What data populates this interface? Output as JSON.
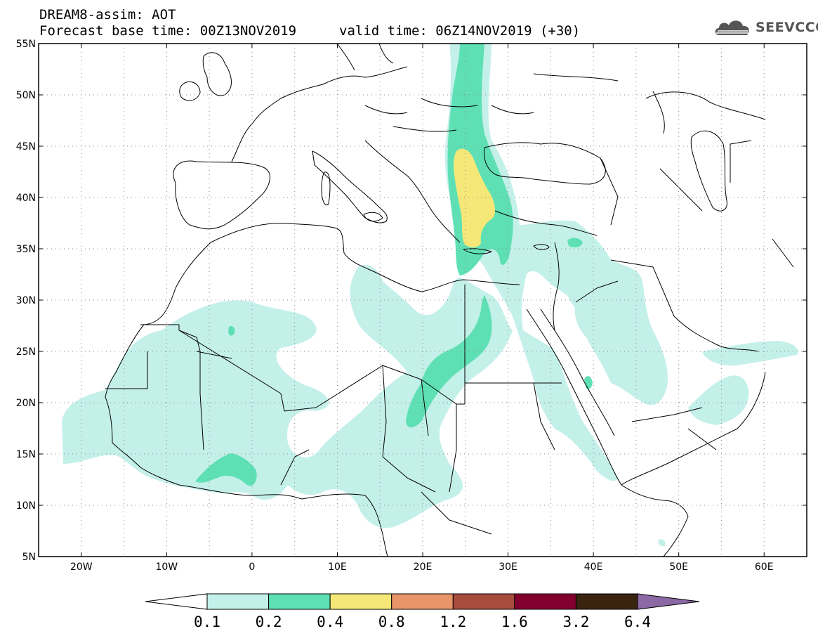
{
  "header": {
    "title": "DREAM8-assim: AOT",
    "base_time": "Forecast base time: 00Z13NOV2019",
    "valid_time": "valid time: 06Z14NOV2019 (+30)"
  },
  "logo": {
    "text": "SEEVCCC",
    "icon": "cloud-logo-icon"
  },
  "map": {
    "lon_range": [
      -25,
      65
    ],
    "lat_range": [
      5,
      55
    ],
    "lon_ticks": [
      {
        "value": -20,
        "label": "20W"
      },
      {
        "value": -10,
        "label": "10W"
      },
      {
        "value": 0,
        "label": "0"
      },
      {
        "value": 10,
        "label": "10E"
      },
      {
        "value": 20,
        "label": "20E"
      },
      {
        "value": 30,
        "label": "30E"
      },
      {
        "value": 40,
        "label": "40E"
      },
      {
        "value": 50,
        "label": "50E"
      },
      {
        "value": 60,
        "label": "60E"
      }
    ],
    "lat_ticks": [
      {
        "value": 55,
        "label": "55N"
      },
      {
        "value": 50,
        "label": "50N"
      },
      {
        "value": 45,
        "label": "45N"
      },
      {
        "value": 40,
        "label": "40N"
      },
      {
        "value": 35,
        "label": "35N"
      },
      {
        "value": 30,
        "label": "30N"
      },
      {
        "value": 25,
        "label": "25N"
      },
      {
        "value": 20,
        "label": "20N"
      },
      {
        "value": 15,
        "label": "15N"
      },
      {
        "value": 10,
        "label": "10N"
      },
      {
        "value": 5,
        "label": "5N"
      }
    ],
    "grid": true
  },
  "colorbar": {
    "levels": [
      "0.1",
      "0.2",
      "0.4",
      "0.8",
      "1.2",
      "1.6",
      "3.2",
      "6.4"
    ],
    "colors": [
      "#ffffff",
      "#c4f0ea",
      "#5ee0b4",
      "#f6e878",
      "#ea946a",
      "#a84c3e",
      "#82002e",
      "#3a2410",
      "#8c68a4"
    ]
  }
}
